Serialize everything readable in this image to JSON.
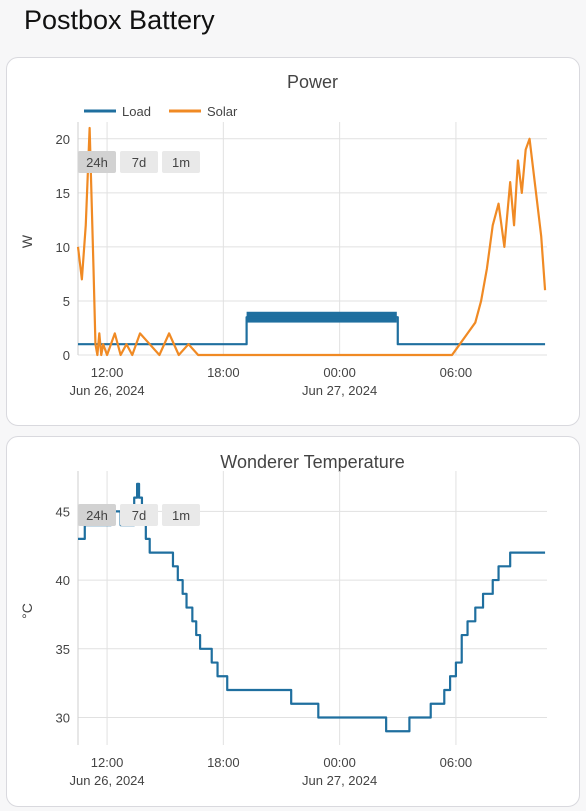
{
  "page": {
    "title": "Postbox Battery"
  },
  "range_buttons": [
    "24h",
    "7d",
    "1m"
  ],
  "range_selected": "24h",
  "chart_data": [
    {
      "id": "power",
      "type": "line",
      "title": "Power",
      "xlabel": "",
      "ylabel": "W",
      "ylim": [
        0,
        21
      ],
      "yticks": [
        0,
        5,
        10,
        15,
        20
      ],
      "xlim": [
        10.5,
        34.7
      ],
      "x_ticks": [
        {
          "x": 12,
          "label": "12:00",
          "sublabel": "Jun 26, 2024"
        },
        {
          "x": 18,
          "label": "18:00",
          "sublabel": ""
        },
        {
          "x": 24,
          "label": "00:00",
          "sublabel": "Jun 27, 2024"
        },
        {
          "x": 30,
          "label": "06:00",
          "sublabel": ""
        }
      ],
      "legend": "top-left",
      "grid": true,
      "series": [
        {
          "name": "Load",
          "color": "#1f6f9f",
          "style": "step",
          "x": [
            10.5,
            19.1,
            19.2,
            23.0,
            26.9,
            27.0,
            34.4,
            34.6
          ],
          "y": [
            1,
            1,
            3.5,
            3.5,
            3.5,
            1,
            1,
            1
          ],
          "band": {
            "x0": 19.2,
            "x1": 26.95,
            "ymin": 3,
            "ymax": 4
          }
        },
        {
          "name": "Solar",
          "color": "#f08a24",
          "style": "line",
          "x": [
            10.5,
            10.7,
            10.9,
            11.1,
            11.3,
            11.4,
            11.5,
            11.6,
            11.7,
            11.8,
            12.0,
            12.4,
            12.7,
            13.0,
            13.3,
            13.7,
            14.2,
            14.7,
            15.2,
            15.7,
            16.2,
            16.7,
            17.0,
            17.5,
            18.0,
            19.5,
            22.0,
            25.0,
            28.0,
            29.8,
            30.2,
            30.6,
            31.0,
            31.3,
            31.6,
            31.9,
            32.2,
            32.5,
            32.8,
            33.0,
            33.2,
            33.4,
            33.6,
            33.8,
            34.0,
            34.2,
            34.4,
            34.6
          ],
          "y": [
            10,
            7,
            12,
            21,
            8,
            1,
            0,
            2,
            0,
            1,
            0,
            2,
            0,
            1,
            0,
            2,
            1,
            0,
            2,
            0,
            1,
            0,
            0,
            0,
            0,
            0,
            0,
            0,
            0,
            0,
            1,
            2,
            3,
            5,
            8,
            12,
            14,
            10,
            16,
            12,
            18,
            15,
            19,
            20,
            17,
            14,
            11,
            6
          ]
        }
      ]
    },
    {
      "id": "temperature",
      "type": "line",
      "title": "Wonderer Temperature",
      "xlabel": "",
      "ylabel": "°C",
      "ylim": [
        28,
        47.5
      ],
      "yticks": [
        30,
        35,
        40,
        45
      ],
      "xlim": [
        10.5,
        34.7
      ],
      "x_ticks": [
        {
          "x": 12,
          "label": "12:00",
          "sublabel": "Jun 26, 2024"
        },
        {
          "x": 18,
          "label": "18:00",
          "sublabel": ""
        },
        {
          "x": 24,
          "label": "00:00",
          "sublabel": "Jun 27, 2024"
        },
        {
          "x": 30,
          "label": "06:00",
          "sublabel": ""
        }
      ],
      "grid": true,
      "series": [
        {
          "name": "",
          "color": "#1f6f9f",
          "style": "step",
          "x": [
            10.5,
            10.85,
            11.2,
            12.2,
            12.7,
            13.4,
            13.55,
            13.65,
            13.8,
            14.0,
            14.2,
            15.4,
            15.65,
            15.9,
            16.1,
            16.4,
            16.6,
            16.8,
            17.1,
            17.4,
            17.7,
            18.2,
            18.6,
            18.9,
            21.5,
            22.9,
            26.4,
            26.9,
            27.2,
            27.6,
            28.1,
            28.7,
            29.0,
            29.4,
            29.7,
            30.0,
            30.3,
            30.6,
            31.0,
            31.4,
            31.9,
            32.2,
            32.5,
            32.8,
            33.1,
            33.4,
            33.7,
            34.0,
            34.2,
            34.4,
            34.6
          ],
          "y": [
            43,
            44,
            44,
            45,
            44,
            46,
            47,
            46,
            45,
            43,
            42,
            41,
            40,
            39,
            38,
            37,
            36,
            35,
            35,
            34,
            33,
            32,
            32,
            32,
            31,
            30,
            29,
            29,
            29,
            30,
            30,
            31,
            31,
            32,
            33,
            34,
            36,
            37,
            38,
            39,
            40,
            41,
            41,
            42,
            42,
            42,
            42,
            42,
            42,
            42,
            42
          ]
        }
      ]
    }
  ]
}
